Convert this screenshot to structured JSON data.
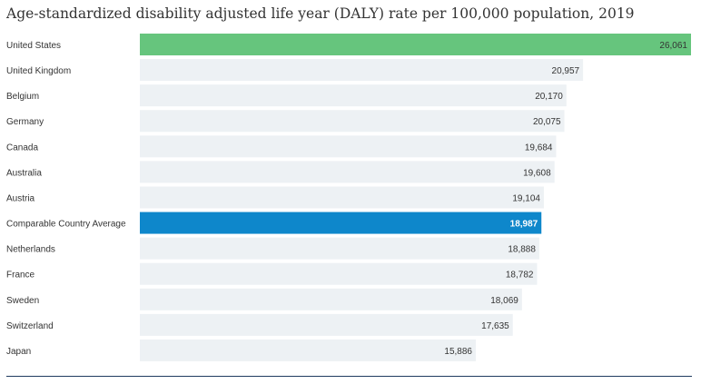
{
  "chart_data": {
    "type": "bar",
    "orientation": "horizontal",
    "title": "Age-standardized disability adjusted life year (DALY) rate per 100,000 population, 2019",
    "categories": [
      "United States",
      "United Kingdom",
      "Belgium",
      "Germany",
      "Canada",
      "Australia",
      "Austria",
      "Comparable Country Average",
      "Netherlands",
      "France",
      "Sweden",
      "Switzerland",
      "Japan"
    ],
    "values": [
      26061,
      20957,
      20170,
      20075,
      19684,
      19608,
      19104,
      18987,
      18888,
      18782,
      18069,
      17635,
      15886
    ],
    "labels": [
      "26,061",
      "20,957",
      "20,170",
      "20,075",
      "19,684",
      "19,608",
      "19,104",
      "18,987",
      "18,888",
      "18,782",
      "18,069",
      "17,635",
      "15,886"
    ],
    "xlabel": "",
    "ylabel": "",
    "xlim": [
      0,
      26061
    ],
    "grid": false,
    "legend": "none",
    "colors": {
      "default_bar": "#edf1f4",
      "highlight_us": "#66c57d",
      "highlight_average": "#0e87cb",
      "label_text": "#333333",
      "highlight_label_text": "#ffffff",
      "bottom_rule": "#1f3a5f"
    },
    "highlights": {
      "United States": "highlight_us",
      "Comparable Country Average": "highlight_average"
    }
  }
}
